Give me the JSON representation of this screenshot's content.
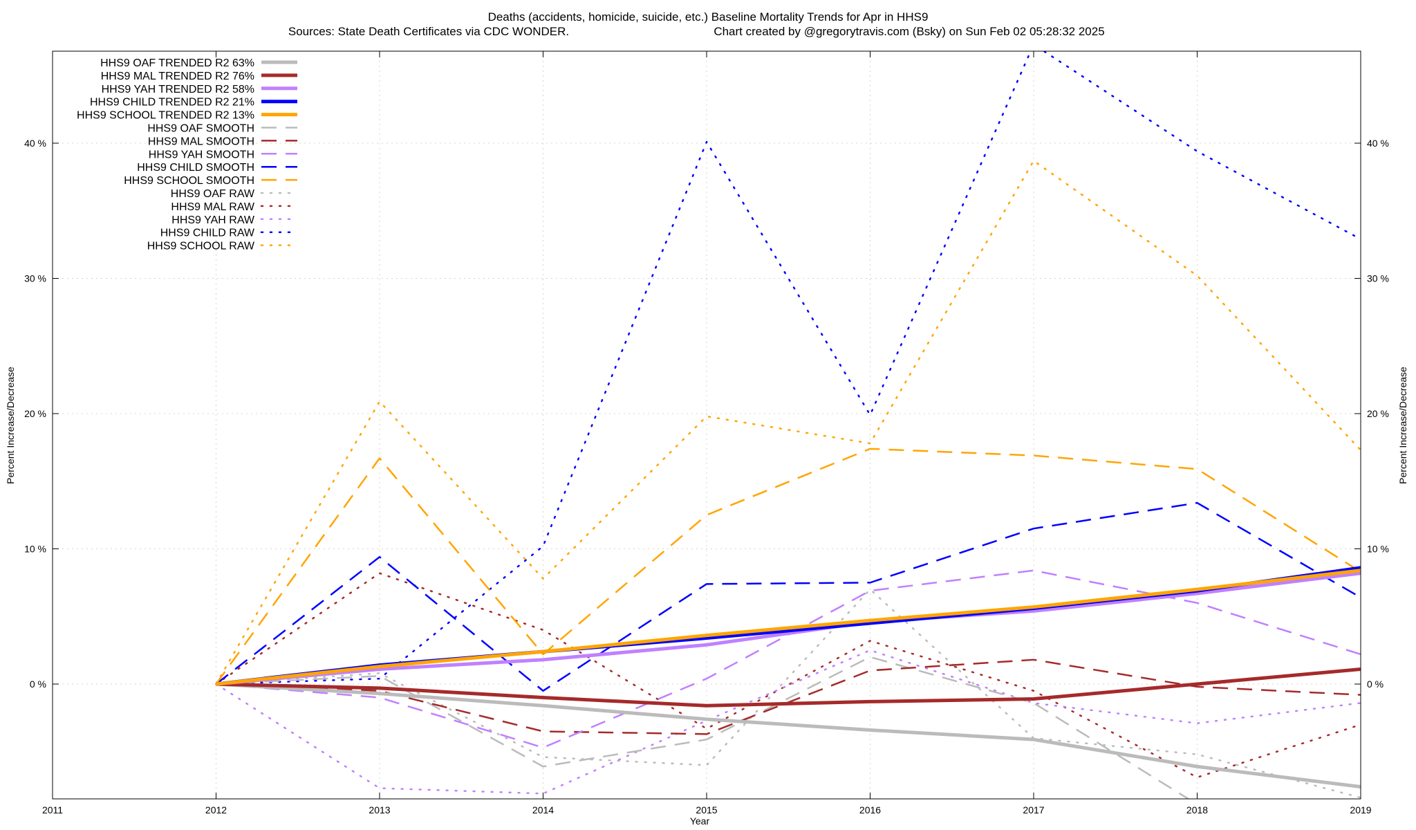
{
  "chart_data": {
    "type": "line",
    "title": "Deaths (accidents, homicide, suicide, etc.)  Baseline Mortality Trends for Apr in HHS9",
    "subtitle_left": "Sources: State Death Certificates via CDC WONDER.",
    "subtitle_right": "Chart created by @gregorytravis.com (Bsky) on Sun Feb 02 05:28:32 2025",
    "xlabel": "Year",
    "ylabel": "Percent Increase/Decrease",
    "y2label": "Percent Increase/Decrease",
    "xlim": [
      2011,
      2019
    ],
    "ylim": [
      -9,
      40
    ],
    "xticks": [
      "2011",
      "2012",
      "2013",
      "2014",
      "2015",
      "2016",
      "2017",
      "2018",
      "2019"
    ],
    "yticks": [
      {
        "value": 0,
        "label": "0 %"
      },
      {
        "value": 10,
        "label": "10 %"
      },
      {
        "value": 20,
        "label": "20 %"
      },
      {
        "value": 30,
        "label": "30 %"
      },
      {
        "value": 40,
        "label": "40 %"
      }
    ],
    "grid": true,
    "legend_position": "top-left",
    "x": [
      2012,
      2013,
      2014,
      2015,
      2016,
      2017,
      2018,
      2019
    ],
    "series": [
      {
        "name": "HHS9 OAF TRENDED R2  63%",
        "color": "#bbbbbb",
        "style": "solid",
        "values": [
          0,
          -0.7,
          -1.6,
          -2.6,
          -3.4,
          -4.1,
          -6.1,
          -7.6
        ]
      },
      {
        "name": "HHS9 MAL TRENDED R2  76%",
        "color": "#a52a2a",
        "style": "solid",
        "values": [
          0,
          -0.3,
          -1.0,
          -1.6,
          -1.3,
          -1.1,
          0.0,
          1.1
        ]
      },
      {
        "name": "HHS9 YAH TRENDED R2  58%",
        "color": "#c080ff",
        "style": "solid",
        "values": [
          0,
          1.1,
          1.8,
          2.9,
          4.6,
          5.4,
          6.7,
          8.2
        ]
      },
      {
        "name": "HHS9 CHILD TRENDED R2  21%",
        "color": "#0000ff",
        "style": "solid",
        "values": [
          0,
          1.4,
          2.4,
          3.4,
          4.5,
          5.6,
          6.9,
          8.6
        ]
      },
      {
        "name": "HHS9 SCHOOL TRENDED R2  13%",
        "color": "#ffa500",
        "style": "solid",
        "values": [
          0,
          1.3,
          2.4,
          3.6,
          4.7,
          5.7,
          7.0,
          8.4
        ]
      },
      {
        "name": "HHS9 OAF SMOOTH",
        "color": "#bbbbbb",
        "style": "dashed",
        "values": [
          0,
          0.6,
          -6.1,
          -4.1,
          2.0,
          -1.4,
          -8.9,
          -8.9
        ]
      },
      {
        "name": "HHS9 MAL SMOOTH",
        "color": "#a52a2a",
        "style": "dashed",
        "values": [
          0,
          -0.5,
          -3.5,
          -3.7,
          1.0,
          1.8,
          -0.2,
          -0.8
        ]
      },
      {
        "name": "HHS9 YAH SMOOTH",
        "color": "#c080ff",
        "style": "dashed",
        "values": [
          0,
          -1.0,
          -4.7,
          0.4,
          6.9,
          8.4,
          6.0,
          2.2
        ]
      },
      {
        "name": "HHS9 CHILD SMOOTH",
        "color": "#0000ff",
        "style": "dashed",
        "values": [
          0,
          9.4,
          -0.5,
          7.4,
          7.5,
          11.5,
          13.4,
          6.4
        ]
      },
      {
        "name": "HHS9 SCHOOL SMOOTH",
        "color": "#ffa500",
        "style": "dashed",
        "values": [
          0,
          16.7,
          2.2,
          12.5,
          17.4,
          16.9,
          15.9,
          8.3
        ]
      },
      {
        "name": "HHS9 OAF RAW",
        "color": "#bbbbbb",
        "style": "dotted",
        "values": [
          0,
          0.8,
          -5.4,
          -6.0,
          7.0,
          -4.0,
          -5.2,
          -8.4
        ]
      },
      {
        "name": "HHS9 MAL RAW",
        "color": "#a52a2a",
        "style": "dotted",
        "values": [
          0,
          8.2,
          4.0,
          -3.3,
          3.2,
          -0.5,
          -6.9,
          -3.0
        ]
      },
      {
        "name": "HHS9 YAH RAW",
        "color": "#c080ff",
        "style": "dotted",
        "values": [
          0,
          -7.7,
          -8.1,
          -2.7,
          2.5,
          -1.4,
          -2.9,
          -1.4
        ]
      },
      {
        "name": "HHS9 CHILD RAW",
        "color": "#0000ff",
        "style": "dotted",
        "values": [
          0,
          0.4,
          10.2,
          40.1,
          19.9,
          47.3,
          39.4,
          32.9
        ]
      },
      {
        "name": "HHS9 SCHOOL RAW",
        "color": "#ffa500",
        "style": "dotted",
        "values": [
          0,
          20.9,
          7.8,
          19.8,
          17.8,
          38.7,
          30.2,
          17.3
        ]
      }
    ]
  }
}
